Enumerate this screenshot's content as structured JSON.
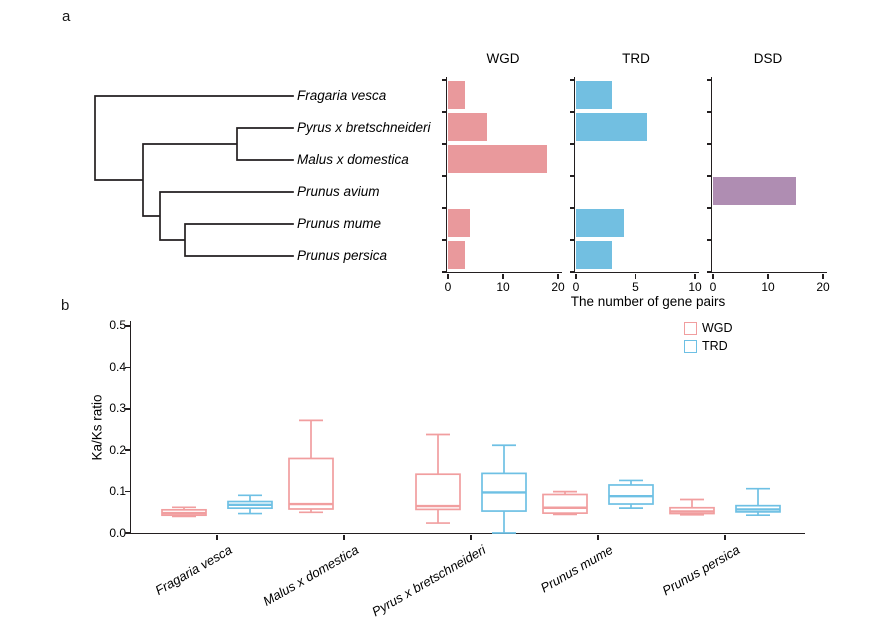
{
  "figure": {
    "panel_a_label": "a",
    "panel_b_label": "b"
  },
  "panel_a": {
    "species": [
      "Fragaria vesca",
      "Pyrus x bretschneideri",
      "Malus x domestica",
      "Prunus avium",
      "Prunus mume",
      "Prunus persica"
    ],
    "x_axis_title": "The number of gene pairs"
  },
  "chart_data": [
    {
      "type": "bar",
      "orientation": "horizontal",
      "title": "WGD",
      "categories": [
        "Fragaria vesca",
        "Pyrus x bretschneideri",
        "Malus x domestica",
        "Prunus avium",
        "Prunus mume",
        "Prunus persica"
      ],
      "values": [
        3,
        7,
        18,
        0,
        4,
        3
      ],
      "xlim": [
        0,
        20
      ],
      "xticks": [
        0,
        10,
        20
      ],
      "bar_color": "#E9999C",
      "grid": false
    },
    {
      "type": "bar",
      "orientation": "horizontal",
      "title": "TRD",
      "categories": [
        "Fragaria vesca",
        "Pyrus x bretschneideri",
        "Malus x domestica",
        "Prunus avium",
        "Prunus mume",
        "Prunus persica"
      ],
      "values": [
        3,
        6,
        0,
        0,
        4,
        3
      ],
      "xlim": [
        0,
        10
      ],
      "xticks": [
        0,
        5,
        10
      ],
      "bar_color": "#72BFE1",
      "grid": false
    },
    {
      "type": "bar",
      "orientation": "horizontal",
      "title": "DSD",
      "categories": [
        "Fragaria vesca",
        "Pyrus x bretschneideri",
        "Malus x domestica",
        "Prunus avium",
        "Prunus mume",
        "Prunus persica"
      ],
      "values": [
        0,
        0,
        0,
        15,
        0,
        0
      ],
      "xlim": [
        0,
        20
      ],
      "xticks": [
        0,
        10,
        20
      ],
      "bar_color": "#AF8DB2",
      "grid": false
    },
    {
      "type": "boxplot",
      "ylabel": "Ka/Ks ratio",
      "ylim": [
        0,
        0.5
      ],
      "ytick_labels": [
        "0.0",
        "0.1",
        "0.2",
        "0.3",
        "0.4",
        "0.5"
      ],
      "categories": [
        "Fragaria vesca",
        "Malus x domestica",
        "Pyrus x bretschneideri",
        "Prunus mume",
        "Prunus persica"
      ],
      "legend_position": "upper right",
      "series": [
        {
          "name": "WGD",
          "color": "#F19E9F",
          "boxes": [
            {
              "min": 0.04,
              "q1": 0.043,
              "median": 0.048,
              "q3": 0.056,
              "max": 0.062
            },
            {
              "min": 0.05,
              "q1": 0.058,
              "median": 0.07,
              "q3": 0.18,
              "max": 0.272
            },
            {
              "min": 0.024,
              "q1": 0.057,
              "median": 0.065,
              "q3": 0.142,
              "max": 0.238
            },
            {
              "min": 0.045,
              "q1": 0.048,
              "median": 0.061,
              "q3": 0.093,
              "max": 0.1
            },
            {
              "min": 0.044,
              "q1": 0.047,
              "median": 0.052,
              "q3": 0.061,
              "max": 0.081
            }
          ]
        },
        {
          "name": "TRD",
          "color": "#6EC0E4",
          "boxes": [
            {
              "min": 0.047,
              "q1": 0.06,
              "median": 0.068,
              "q3": 0.076,
              "max": 0.091
            },
            null,
            {
              "min": 0.0,
              "q1": 0.053,
              "median": 0.098,
              "q3": 0.144,
              "max": 0.212
            },
            {
              "min": 0.06,
              "q1": 0.07,
              "median": 0.089,
              "q3": 0.116,
              "max": 0.127
            },
            {
              "min": 0.043,
              "q1": 0.051,
              "median": 0.057,
              "q3": 0.066,
              "max": 0.107
            }
          ]
        }
      ]
    }
  ]
}
